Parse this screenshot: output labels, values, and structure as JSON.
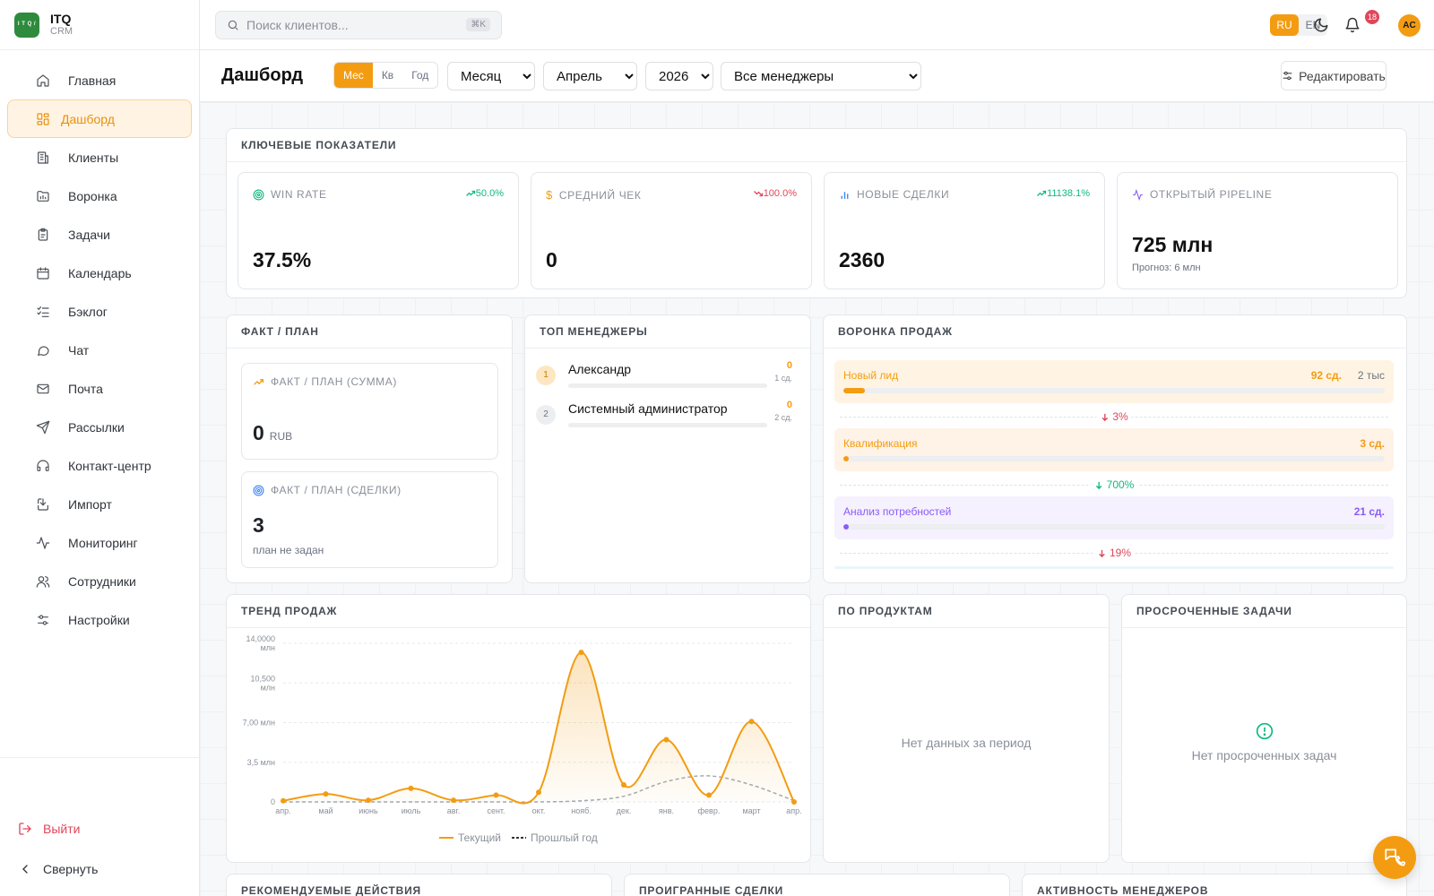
{
  "brand": {
    "name": "ITQ",
    "sub": "CRM",
    "logo_text": "I T Q /"
  },
  "nav": [
    {
      "label": "Главная",
      "icon": "home-icon"
    },
    {
      "label": "Дашборд",
      "icon": "dashboard-icon",
      "active": true
    },
    {
      "label": "Клиенты",
      "icon": "building-icon"
    },
    {
      "label": "Воронка",
      "icon": "folder-chart-icon"
    },
    {
      "label": "Задачи",
      "icon": "clipboard-icon"
    },
    {
      "label": "Календарь",
      "icon": "calendar-icon"
    },
    {
      "label": "Бэклог",
      "icon": "list-checks-icon"
    },
    {
      "label": "Чат",
      "icon": "chat-icon"
    },
    {
      "label": "Почта",
      "icon": "mail-icon"
    },
    {
      "label": "Рассылки",
      "icon": "send-icon"
    },
    {
      "label": "Контакт-центр",
      "icon": "headset-icon"
    },
    {
      "label": "Импорт",
      "icon": "import-icon"
    },
    {
      "label": "Мониторинг",
      "icon": "activity-icon"
    },
    {
      "label": "Сотрудники",
      "icon": "users-icon"
    },
    {
      "label": "Настройки",
      "icon": "settings-sliders-icon"
    }
  ],
  "sidebar_bottom": {
    "logout": "Выйти",
    "collapse": "Свернуть"
  },
  "topbar": {
    "search_placeholder": "Поиск клиентов...",
    "search_shortcut": "⌘K",
    "lang": [
      "RU",
      "EN"
    ],
    "lang_active": "RU",
    "notifications": "18",
    "avatar": "AC"
  },
  "header": {
    "title": "Дашборд",
    "period_tabs": [
      "Мес",
      "Кв",
      "Год"
    ],
    "period_active": "Мес",
    "selects": {
      "granularity": "Месяц",
      "month": "Апрель",
      "year": "2026",
      "managers": "Все менеджеры"
    },
    "edit": "Редактировать"
  },
  "kpi": {
    "title": "КЛЮЧЕВЫЕ ПОКАЗАТЕЛИ",
    "cards": [
      {
        "label": "WIN RATE",
        "value": "37.5%",
        "delta": "50.0%",
        "trend": "up",
        "icon": "target-icon"
      },
      {
        "label": "СРЕДНИЙ ЧЕК",
        "value": "0",
        "delta": "100.0%",
        "trend": "down",
        "icon": "dollar-icon"
      },
      {
        "label": "НОВЫЕ СДЕЛКИ",
        "value": "2360",
        "delta": "11138.1%",
        "trend": "up",
        "icon": "bar-chart-icon"
      },
      {
        "label": "ОТКРЫТЫЙ PIPELINE",
        "value": "725 млн",
        "sub": "Прогноз: 6 млн",
        "icon": "activity-icon"
      }
    ]
  },
  "fact_plan": {
    "title": "ФАКТ / ПЛАН",
    "sum": {
      "label": "ФАКТ / ПЛАН (СУММА)",
      "value": "0",
      "unit": "RUB"
    },
    "deals": {
      "label": "ФАКТ / ПЛАН (СДЕЛКИ)",
      "value": "3",
      "sub": "план не задан"
    }
  },
  "top_managers": {
    "title": "ТОП МЕНЕДЖЕРЫ",
    "items": [
      {
        "rank": "1",
        "name": "Александр",
        "value": "0",
        "deals": "1 сд."
      },
      {
        "rank": "2",
        "name": "Системный администратор",
        "value": "0",
        "deals": "2 сд."
      }
    ]
  },
  "funnel": {
    "title": "ВОРОНКА ПРОДАЖ",
    "stages": [
      {
        "name": "Новый лид",
        "count": "92 сд.",
        "amount": "2 тыс",
        "fill": 0.04,
        "color": "#f39c12",
        "bg": "#fff4e3"
      },
      {
        "name": "Квалификация",
        "count": "3 сд.",
        "amount": "",
        "fill": 0.002,
        "color": "#f39c12",
        "bg": "#fff2e6"
      },
      {
        "name": "Анализ потребностей",
        "count": "21 сд.",
        "amount": "",
        "fill": 0.01,
        "color": "#8b5cf6",
        "bg": "#f5f1fe"
      }
    ],
    "conversions": [
      {
        "text": "3%",
        "trend": "down"
      },
      {
        "text": "700%",
        "trend": "up"
      },
      {
        "text": "19%",
        "trend": "down"
      }
    ]
  },
  "sales_trend": {
    "title": "ТРЕНД ПРОДАЖ",
    "legend": {
      "current": "Текущий",
      "prev": "Прошлый год"
    }
  },
  "chart_data": {
    "type": "line",
    "title": "ТРЕНД ПРОДАЖ",
    "categories": [
      "апр.",
      "май",
      "июнь",
      "июль",
      "авг.",
      "сент.",
      "окт.",
      "нояб.",
      "дек.",
      "янв.",
      "февр.",
      "март",
      "апр."
    ],
    "series": [
      {
        "name": "Текущий",
        "values": [
          100,
          700,
          150,
          1200,
          150,
          600,
          850,
          13200,
          1500,
          5500,
          600,
          7100,
          0
        ]
      },
      {
        "name": "Прошлый год",
        "values": [
          0,
          0,
          0,
          0,
          0,
          0,
          0,
          100,
          500,
          1800,
          2300,
          1500,
          100
        ]
      }
    ],
    "y_ticks": [
      "0",
      "3,5 млн",
      "7,00 млн",
      "10,500 млн",
      "14,0000 млн"
    ],
    "y_tick_values": [
      0,
      3500,
      7000,
      10500,
      14000
    ],
    "ylim": [
      0,
      14000
    ],
    "grid": true,
    "legend_position": "bottom"
  },
  "products": {
    "title": "ПО ПРОДУКТАМ",
    "empty": "Нет данных за период"
  },
  "overdue": {
    "title": "ПРОСРОЧЕННЫЕ ЗАДАЧИ",
    "empty": "Нет просроченных задач"
  },
  "bottom_cards": [
    "РЕКОМЕНДУЕМЫЕ ДЕЙСТВИЯ",
    "ПРОИГРАННЫЕ СДЕЛКИ",
    "АКТИВНОСТЬ МЕНЕДЖЕРОВ"
  ]
}
